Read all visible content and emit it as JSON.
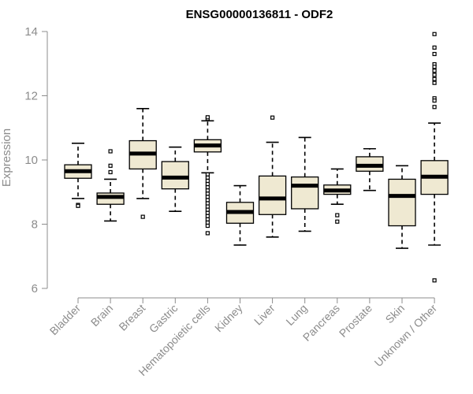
{
  "chart_data": {
    "type": "boxplot",
    "title": "ENSG00000136811 - ODF2",
    "ylabel": "Expression",
    "xlabel": "",
    "ylim": [
      6,
      14
    ],
    "yticks": [
      6,
      8,
      10,
      12,
      14
    ],
    "grid": false,
    "colors": {
      "box_fill": "#efe9d2",
      "line": "#000000",
      "axis": "#8c8c8c"
    },
    "categories": [
      "Bladder",
      "Brain",
      "Breast",
      "Gastric",
      "Hematopoietic cells",
      "Kidney",
      "Liver",
      "Lung",
      "Pancreas",
      "Prostate",
      "Skin",
      "Unknown / Other"
    ],
    "boxes": [
      {
        "name": "Bladder",
        "whisker_low": 8.8,
        "q1": 9.43,
        "median": 9.65,
        "q3": 9.85,
        "whisker_high": 10.52,
        "outliers": [
          8.6,
          8.57
        ]
      },
      {
        "name": "Brain",
        "whisker_low": 8.1,
        "q1": 8.62,
        "median": 8.85,
        "q3": 8.97,
        "whisker_high": 9.4,
        "outliers": [
          9.62,
          9.82,
          10.27
        ]
      },
      {
        "name": "Breast",
        "whisker_low": 8.8,
        "q1": 9.72,
        "median": 10.2,
        "q3": 10.6,
        "whisker_high": 11.6,
        "outliers": [
          8.23
        ]
      },
      {
        "name": "Gastric",
        "whisker_low": 8.4,
        "q1": 9.1,
        "median": 9.45,
        "q3": 9.95,
        "whisker_high": 10.4,
        "outliers": []
      },
      {
        "name": "Hematopoietic cells",
        "whisker_low": 9.6,
        "q1": 10.25,
        "median": 10.45,
        "q3": 10.63,
        "whisker_high": 11.22,
        "outliers": [
          11.28,
          11.33,
          9.55,
          9.45,
          9.35,
          9.25,
          9.15,
          9.05,
          8.95,
          8.85,
          8.75,
          8.65,
          8.55,
          8.45,
          8.35,
          8.25,
          8.15,
          8.05,
          7.95,
          7.72
        ]
      },
      {
        "name": "Kidney",
        "whisker_low": 7.35,
        "q1": 8.03,
        "median": 8.38,
        "q3": 8.68,
        "whisker_high": 9.2,
        "outliers": []
      },
      {
        "name": "Liver",
        "whisker_low": 7.6,
        "q1": 8.3,
        "median": 8.8,
        "q3": 9.5,
        "whisker_high": 10.55,
        "outliers": [
          11.32
        ]
      },
      {
        "name": "Lung",
        "whisker_low": 7.78,
        "q1": 8.48,
        "median": 9.2,
        "q3": 9.47,
        "whisker_high": 10.7,
        "outliers": []
      },
      {
        "name": "Pancreas",
        "whisker_low": 8.62,
        "q1": 8.93,
        "median": 9.05,
        "q3": 9.22,
        "whisker_high": 9.72,
        "outliers": [
          8.28,
          8.08
        ]
      },
      {
        "name": "Prostate",
        "whisker_low": 9.05,
        "q1": 9.65,
        "median": 9.82,
        "q3": 10.1,
        "whisker_high": 10.35,
        "outliers": []
      },
      {
        "name": "Skin",
        "whisker_low": 7.25,
        "q1": 7.95,
        "median": 8.88,
        "q3": 9.4,
        "whisker_high": 9.82,
        "outliers": []
      },
      {
        "name": "Unknown / Other",
        "whisker_low": 7.35,
        "q1": 8.93,
        "median": 9.48,
        "q3": 9.98,
        "whisker_high": 11.15,
        "outliers": [
          13.92,
          13.5,
          13.3,
          12.98,
          12.9,
          12.78,
          12.65,
          12.52,
          12.4,
          11.92,
          11.85,
          11.65,
          6.25
        ]
      }
    ]
  }
}
